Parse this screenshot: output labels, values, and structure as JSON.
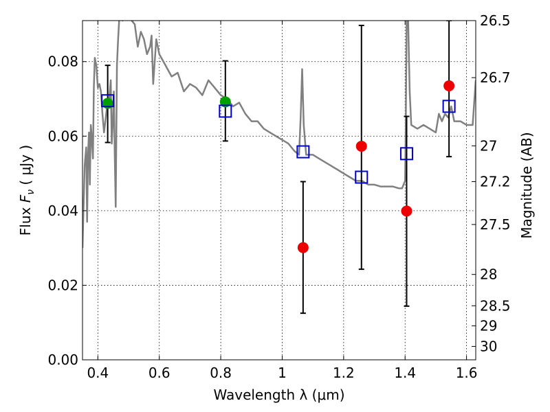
{
  "chart_data": {
    "type": "scatter",
    "xlabel": "Wavelength  λ (μm)",
    "ylabel": "Flux  F_ν  ( μJy )",
    "ylabel_parts": {
      "prefix": "Flux  ",
      "symbol": "F",
      "subscript": "ν",
      "suffix": "  (  μJy )"
    },
    "y2label": "Magnitude (AB)",
    "xlim": [
      0.35,
      1.63
    ],
    "ylim": [
      0.0,
      0.091
    ],
    "grid": true,
    "x_ticks": [
      0.4,
      0.6,
      0.8,
      1.0,
      1.2,
      1.4,
      1.6
    ],
    "x_tick_labels": [
      "0.4",
      "0.6",
      "0.8",
      "1",
      "1.2",
      "1.4",
      "1.6"
    ],
    "y_ticks": [
      0.0,
      0.02,
      0.04,
      0.06,
      0.08
    ],
    "y_tick_labels": [
      "0.00",
      "0.02",
      "0.04",
      "0.06",
      "0.08"
    ],
    "y2_ticks": [
      {
        "label": "26.5",
        "flux": 0.091
      },
      {
        "label": "26.7",
        "flux": 0.0757
      },
      {
        "label": "27",
        "flux": 0.0574
      },
      {
        "label": "27.2",
        "flux": 0.0478
      },
      {
        "label": "27.5",
        "flux": 0.0363
      },
      {
        "label": "28",
        "flux": 0.0229
      },
      {
        "label": "28.5",
        "flux": 0.0145
      },
      {
        "label": "29",
        "flux": 0.0091
      },
      {
        "label": "30",
        "flux": 0.0036
      }
    ],
    "colors": {
      "model": "#808080",
      "model_fluxes": "#0000cc",
      "detections": "#00a000",
      "upper_or_lowsn": "#ee0000",
      "errorbar": "#000000"
    },
    "model_spectrum": {
      "x": [
        0.35,
        0.357,
        0.362,
        0.365,
        0.368,
        0.371,
        0.374,
        0.377,
        0.38,
        0.384,
        0.387,
        0.39,
        0.395,
        0.4,
        0.405,
        0.41,
        0.415,
        0.42,
        0.43,
        0.437,
        0.442,
        0.445,
        0.449,
        0.452,
        0.455,
        0.458,
        0.462,
        0.466,
        0.47,
        0.48,
        0.5,
        0.52,
        0.53,
        0.54,
        0.55,
        0.56,
        0.57,
        0.575,
        0.58,
        0.59,
        0.6,
        0.62,
        0.64,
        0.66,
        0.68,
        0.7,
        0.72,
        0.74,
        0.76,
        0.78,
        0.8,
        0.82,
        0.84,
        0.86,
        0.88,
        0.9,
        0.92,
        0.94,
        0.96,
        0.98,
        1.0,
        1.02,
        1.04,
        1.055,
        1.06,
        1.065,
        1.07,
        1.078,
        1.1,
        1.12,
        1.14,
        1.16,
        1.18,
        1.2,
        1.22,
        1.24,
        1.26,
        1.28,
        1.3,
        1.32,
        1.34,
        1.36,
        1.38,
        1.39,
        1.4,
        1.402,
        1.405,
        1.41,
        1.415,
        1.42,
        1.44,
        1.46,
        1.48,
        1.5,
        1.51,
        1.52,
        1.53,
        1.54,
        1.55,
        1.56,
        1.58,
        1.6,
        1.62,
        1.63
      ],
      "y": [
        0.03,
        0.052,
        0.057,
        0.037,
        0.055,
        0.061,
        0.047,
        0.063,
        0.06,
        0.054,
        0.073,
        0.081,
        0.079,
        0.073,
        0.074,
        0.072,
        0.066,
        0.061,
        0.068,
        0.07,
        0.075,
        0.058,
        0.064,
        0.072,
        0.055,
        0.041,
        0.079,
        0.086,
        0.092,
        0.091,
        0.092,
        0.09,
        0.084,
        0.088,
        0.086,
        0.082,
        0.084,
        0.087,
        0.074,
        0.086,
        0.082,
        0.079,
        0.076,
        0.077,
        0.072,
        0.074,
        0.073,
        0.071,
        0.075,
        0.073,
        0.071,
        0.07,
        0.068,
        0.069,
        0.066,
        0.064,
        0.064,
        0.062,
        0.061,
        0.06,
        0.059,
        0.058,
        0.056,
        0.055,
        0.065,
        0.078,
        0.063,
        0.055,
        0.055,
        0.054,
        0.053,
        0.052,
        0.051,
        0.05,
        0.049,
        0.048,
        0.048,
        0.047,
        0.047,
        0.0465,
        0.0465,
        0.0465,
        0.046,
        0.046,
        0.048,
        0.06,
        0.091,
        0.091,
        0.072,
        0.063,
        0.062,
        0.063,
        0.062,
        0.061,
        0.066,
        0.064,
        0.066,
        0.065,
        0.068,
        0.064,
        0.064,
        0.063,
        0.063,
        0.075
      ]
    },
    "model_fluxes": {
      "x": [
        0.432,
        0.815,
        1.068,
        1.258,
        1.405,
        1.543
      ],
      "y": [
        0.0695,
        0.0667,
        0.0558,
        0.049,
        0.0553,
        0.068
      ]
    },
    "detections": {
      "x": [
        0.432,
        0.815
      ],
      "y": [
        0.0688,
        0.0692
      ],
      "yerr_lo": [
        0.0583,
        0.0587
      ],
      "yerr_hi": [
        0.079,
        0.0802
      ]
    },
    "low_sn": {
      "x": [
        1.068,
        1.258,
        1.405,
        1.543
      ],
      "y": [
        0.0301,
        0.0573,
        0.0399,
        0.0735
      ],
      "yerr_lo": [
        0.0125,
        0.0243,
        0.0144,
        0.0545
      ],
      "yerr_hi": [
        0.0478,
        0.0897,
        0.0653,
        0.091
      ]
    }
  }
}
